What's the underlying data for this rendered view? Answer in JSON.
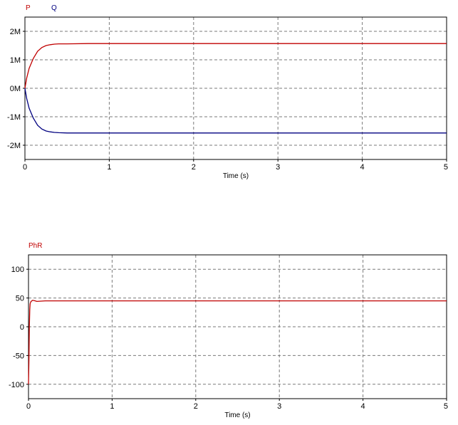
{
  "colors": {
    "red": "#c00000",
    "blue": "#000080",
    "grid": "#7a7a7a",
    "frame": "#000000"
  },
  "chart_data": [
    {
      "type": "line",
      "legend": [
        "P",
        "Q"
      ],
      "xlabel": "Time (s)",
      "xlim": [
        0,
        5
      ],
      "ylim": [
        -2.5,
        2.5
      ],
      "x_ticks": [
        0,
        1,
        2,
        3,
        4,
        5
      ],
      "x_tick_labels": [
        "0",
        "1",
        "2",
        "3",
        "4",
        "5"
      ],
      "y_ticks": [
        2,
        1,
        0,
        -1,
        -2
      ],
      "y_tick_labels": [
        "2M",
        "1M",
        "0M",
        "-1M",
        "-2M"
      ],
      "grid": true,
      "series": [
        {
          "name": "P",
          "color": "#c00000",
          "x": [
            0,
            0.02,
            0.05,
            0.1,
            0.15,
            0.2,
            0.25,
            0.3,
            0.35,
            0.4,
            0.5,
            0.75,
            1.0,
            2.0,
            3.0,
            4.0,
            5.0
          ],
          "y": [
            0,
            0.35,
            0.7,
            1.05,
            1.3,
            1.43,
            1.5,
            1.53,
            1.55,
            1.56,
            1.56,
            1.57,
            1.57,
            1.57,
            1.57,
            1.57,
            1.57
          ]
        },
        {
          "name": "Q",
          "color": "#000080",
          "x": [
            0,
            0.02,
            0.05,
            0.1,
            0.15,
            0.2,
            0.25,
            0.3,
            0.35,
            0.4,
            0.5,
            0.75,
            1.0,
            2.0,
            3.0,
            4.0,
            5.0
          ],
          "y": [
            0,
            -0.35,
            -0.7,
            -1.05,
            -1.3,
            -1.43,
            -1.5,
            -1.53,
            -1.55,
            -1.56,
            -1.57,
            -1.57,
            -1.57,
            -1.57,
            -1.57,
            -1.57,
            -1.57
          ]
        }
      ]
    },
    {
      "type": "line",
      "legend": [
        "PhR"
      ],
      "xlabel": "Time (s)",
      "xlim": [
        0,
        5
      ],
      "ylim": [
        -125,
        125
      ],
      "x_ticks": [
        0,
        1,
        2,
        3,
        4,
        5
      ],
      "x_tick_labels": [
        "0",
        "1",
        "2",
        "3",
        "4",
        "5"
      ],
      "y_ticks": [
        100,
        50,
        0,
        -50,
        -100
      ],
      "y_tick_labels": [
        "100",
        "50",
        "0",
        "-50",
        "-100"
      ],
      "grid": true,
      "series": [
        {
          "name": "PhR",
          "color": "#c00000",
          "x": [
            0,
            0.005,
            0.01,
            0.015,
            0.02,
            0.03,
            0.05,
            0.08,
            0.1,
            0.15,
            0.2,
            0.3,
            0.5,
            1,
            2,
            3,
            4,
            5
          ],
          "y": [
            -100,
            -60,
            0,
            30,
            40,
            44,
            46,
            45,
            44,
            44.5,
            45,
            45,
            45,
            45,
            45,
            45,
            45,
            45
          ]
        }
      ]
    }
  ]
}
